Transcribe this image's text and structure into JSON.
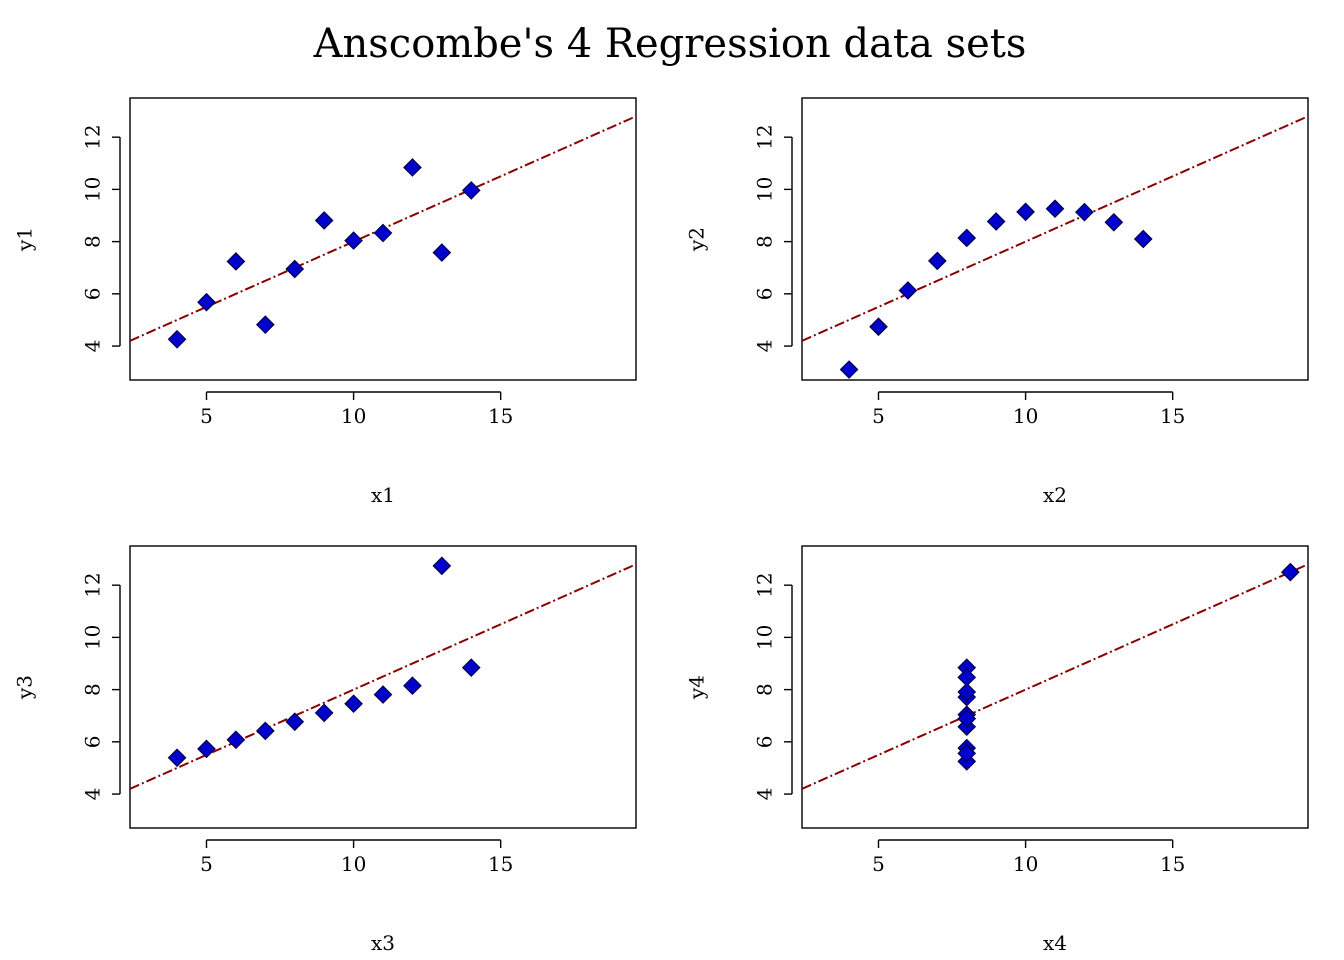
{
  "figure": {
    "title": "Anscombe's 4 Regression data sets"
  },
  "colors": {
    "points": "#0000cc",
    "regression_line": "#8b0000"
  },
  "chart_data": [
    {
      "type": "scatter",
      "id": "set1",
      "xlabel": "x1",
      "ylabel": "y1",
      "xlim": [
        2.4,
        19.6
      ],
      "ylim": [
        2.7,
        13.5
      ],
      "xticks": [
        5,
        10,
        15
      ],
      "yticks": [
        4,
        6,
        8,
        10,
        12
      ],
      "x": [
        10,
        8,
        13,
        9,
        11,
        14,
        6,
        4,
        12,
        7,
        5
      ],
      "y": [
        8.04,
        6.95,
        7.58,
        8.81,
        8.33,
        9.96,
        7.24,
        4.26,
        10.84,
        4.82,
        5.68
      ],
      "regression": {
        "intercept": 3.0,
        "slope": 0.5
      }
    },
    {
      "type": "scatter",
      "id": "set2",
      "xlabel": "x2",
      "ylabel": "y2",
      "xlim": [
        2.4,
        19.6
      ],
      "ylim": [
        2.7,
        13.5
      ],
      "xticks": [
        5,
        10,
        15
      ],
      "yticks": [
        4,
        6,
        8,
        10,
        12
      ],
      "x": [
        10,
        8,
        13,
        9,
        11,
        14,
        6,
        4,
        12,
        7,
        5
      ],
      "y": [
        9.14,
        8.14,
        8.74,
        8.77,
        9.26,
        8.1,
        6.13,
        3.1,
        9.13,
        7.26,
        4.74
      ],
      "regression": {
        "intercept": 3.0,
        "slope": 0.5
      }
    },
    {
      "type": "scatter",
      "id": "set3",
      "xlabel": "x3",
      "ylabel": "y3",
      "xlim": [
        2.4,
        19.6
      ],
      "ylim": [
        2.7,
        13.5
      ],
      "xticks": [
        5,
        10,
        15
      ],
      "yticks": [
        4,
        6,
        8,
        10,
        12
      ],
      "x": [
        10,
        8,
        13,
        9,
        11,
        14,
        6,
        4,
        12,
        7,
        5
      ],
      "y": [
        7.46,
        6.77,
        12.74,
        7.11,
        7.81,
        8.84,
        6.08,
        5.39,
        8.15,
        6.42,
        5.73
      ],
      "regression": {
        "intercept": 3.0,
        "slope": 0.5
      }
    },
    {
      "type": "scatter",
      "id": "set4",
      "xlabel": "x4",
      "ylabel": "y4",
      "xlim": [
        2.4,
        19.6
      ],
      "ylim": [
        2.7,
        13.5
      ],
      "xticks": [
        5,
        10,
        15
      ],
      "yticks": [
        4,
        6,
        8,
        10,
        12
      ],
      "x": [
        8,
        8,
        8,
        8,
        8,
        8,
        8,
        19,
        8,
        8,
        8
      ],
      "y": [
        6.58,
        5.76,
        7.71,
        8.84,
        8.47,
        7.04,
        5.25,
        12.5,
        5.56,
        7.91,
        6.89
      ],
      "regression": {
        "intercept": 3.0,
        "slope": 0.5
      }
    }
  ]
}
